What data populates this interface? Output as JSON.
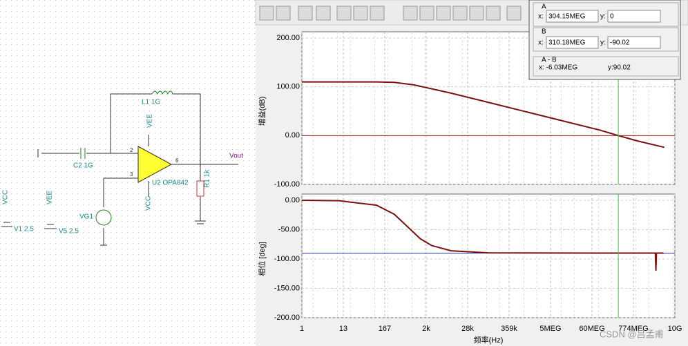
{
  "chart_data": [
    {
      "type": "line",
      "y_label": "增益(dB)",
      "xscale": "log",
      "grid": true,
      "xlim": [
        1,
        10000000000
      ],
      "ylim": [
        -100,
        200
      ],
      "yticks": [
        {
          "value": 200,
          "label": "200.00"
        },
        {
          "value": 100,
          "label": "100.00"
        },
        {
          "value": 0,
          "label": "0.00"
        },
        {
          "value": -100,
          "label": "-100.00"
        }
      ],
      "xticks": [],
      "x": [
        1,
        10,
        100,
        300,
        1000,
        10000,
        100000,
        1000000,
        10000000,
        100000000,
        304150000,
        1000000000,
        5200000000
      ],
      "series": [
        {
          "name": "Gain",
          "color": "#7a1010",
          "values": [
            110,
            110,
            110,
            109,
            104,
            87,
            68,
            49,
            30,
            11,
            0,
            -11,
            -24
          ]
        }
      ],
      "reference_line": {
        "value": 0,
        "color": "#a02020"
      }
    },
    {
      "type": "line",
      "y_label": "相位 [deg]",
      "x_label": "频率(Hz)",
      "xscale": "log",
      "grid": true,
      "xlim": [
        1,
        10000000000
      ],
      "ylim": [
        -200,
        0
      ],
      "yticks": [
        {
          "value": 0,
          "label": "0.00"
        },
        {
          "value": -50,
          "label": "-50.00"
        },
        {
          "value": -100,
          "label": "-100.00"
        },
        {
          "value": -150,
          "label": "-150.00"
        },
        {
          "value": -200,
          "label": "-200.00"
        }
      ],
      "xticks": [
        1,
        {
          "value": 12.92,
          "label": "13"
        },
        {
          "value": 166.8,
          "label": "167"
        },
        {
          "value": 2154,
          "label": "2k"
        },
        {
          "value": 27826,
          "label": "28k"
        },
        {
          "value": 359381,
          "label": "359k"
        },
        {
          "value": 4641589,
          "label": "5MEG"
        },
        {
          "value": 59948425,
          "label": "60MEG"
        },
        {
          "value": 774263683,
          "label": "774MEG"
        },
        {
          "value": 10000000000,
          "label": "10G"
        }
      ],
      "x": [
        1,
        10,
        100,
        300,
        680,
        1500,
        3000,
        10000,
        100000,
        100000000,
        3000000000,
        3100000000,
        3200000000,
        5000000000
      ],
      "series": [
        {
          "name": "Phase",
          "color": "#7a1010",
          "values": [
            0,
            -0.8,
            -8.4,
            -23.8,
            -45,
            -65.6,
            -77,
            -86,
            -89.6,
            -90,
            -90,
            -120,
            -90,
            -90
          ]
        }
      ],
      "reference_line": {
        "value": -90,
        "color": "#2030c0"
      }
    }
  ],
  "cursor_panel": {
    "a": {
      "title": "A",
      "x_prefix": "x:",
      "x": {
        "value": 304150000,
        "label": "304.15MEG"
      },
      "y_prefix": "y:",
      "y": 0
    },
    "b": {
      "title": "B",
      "x_prefix": "x:",
      "x": {
        "value": 310180000,
        "label": "310.18MEG"
      },
      "y_prefix": "y:",
      "y": -90.02
    },
    "diff": {
      "title": "A - B",
      "x": "x: -6.03MEG",
      "y": "y:90.02"
    }
  },
  "schematic": {
    "vcc1": "VCC",
    "vee1": "VEE",
    "l1": "L1 1G",
    "c2": "C2 1G",
    "u2": "U2 OPA842",
    "r1": "R1 1k",
    "vout": "Vout",
    "vg1": "VG1",
    "vcc2": "VCC",
    "vee2": "VEE",
    "v1": "V1 2.5",
    "v5": "V5 2.5",
    "vcc3": "VCC",
    "pin2": "2",
    "pin3": "3",
    "pin6": "6"
  },
  "watermark": "CSDN @吕孟甫"
}
